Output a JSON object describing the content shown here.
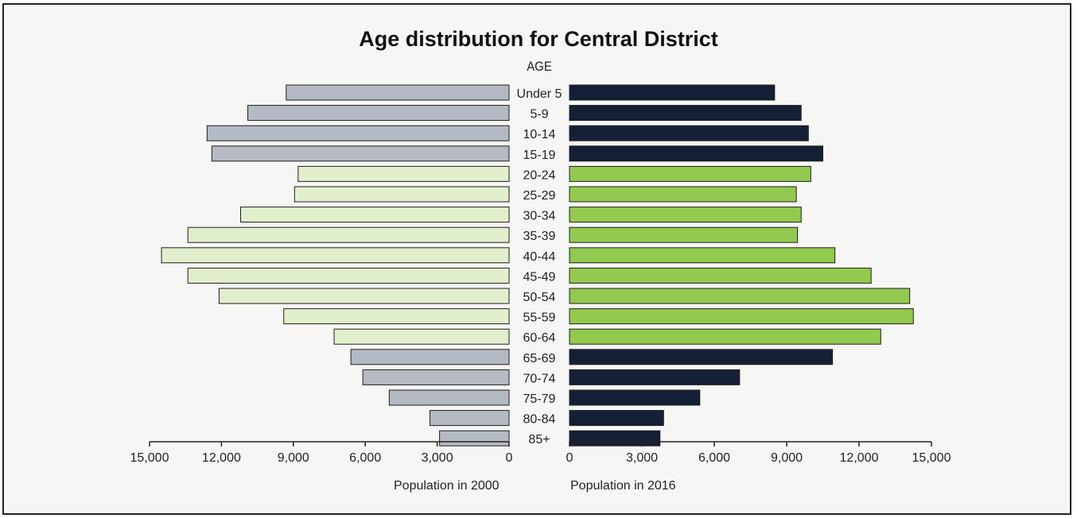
{
  "chart_data": {
    "type": "bar",
    "orientation": "horizontal",
    "layout": "population-pyramid",
    "title": "Age distribution for Central District",
    "category_axis_label": "AGE",
    "categories": [
      "Under 5",
      "5-9",
      "10-14",
      "15-19",
      "20-24",
      "25-29",
      "30-34",
      "35-39",
      "40-44",
      "45-49",
      "50-54",
      "55-59",
      "60-64",
      "65-69",
      "70-74",
      "75-79",
      "80-84",
      "85+"
    ],
    "left": {
      "xlabel": "Population in 2000",
      "values": [
        9300,
        10900,
        12600,
        12400,
        8800,
        8950,
        11200,
        13400,
        14500,
        13400,
        12100,
        9400,
        7300,
        6600,
        6100,
        5000,
        3300,
        2900
      ],
      "xlim": [
        15000,
        0
      ],
      "ticks": [
        15000,
        12000,
        9000,
        6000,
        3000,
        0
      ],
      "tick_labels": [
        "15,000",
        "12,000",
        "9,000",
        "6,000",
        "3,000",
        "0"
      ]
    },
    "right": {
      "xlabel": "Population in 2016",
      "values": [
        8500,
        9600,
        9900,
        10500,
        10000,
        9400,
        9600,
        9450,
        11000,
        12500,
        14100,
        14250,
        12900,
        10900,
        7050,
        5400,
        3900,
        3750
      ],
      "xlim": [
        0,
        15000
      ],
      "ticks": [
        0,
        3000,
        6000,
        9000,
        12000,
        15000
      ],
      "tick_labels": [
        "0",
        "3,000",
        "6,000",
        "9,000",
        "12,000",
        "15,000"
      ]
    },
    "highlight_categories": [
      "20-24",
      "25-29",
      "30-34",
      "35-39",
      "40-44",
      "45-49",
      "50-54",
      "55-59",
      "60-64"
    ],
    "colors": {
      "left_default": "#b4bac3",
      "left_highlight": "#e2efcc",
      "right_default": "#142035",
      "right_highlight": "#93c94f",
      "bar_stroke": "#1e1e1e"
    }
  }
}
